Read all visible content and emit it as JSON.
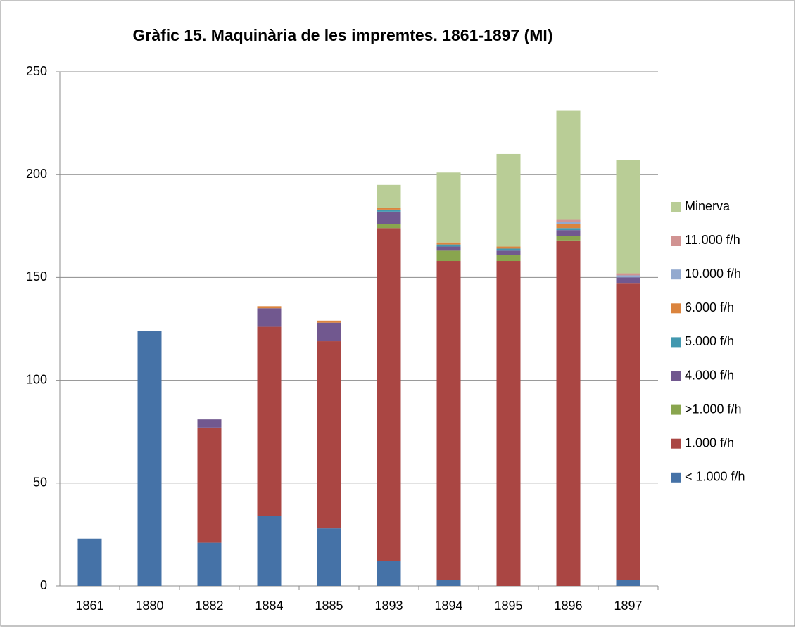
{
  "chart_data": {
    "type": "stacked_bar",
    "title": "Gràfic 15. Maquinària de les impremtes. 1861-1897 (MI)",
    "categories": [
      "1861",
      "1880",
      "1882",
      "1884",
      "1885",
      "1893",
      "1894",
      "1895",
      "1896",
      "1897"
    ],
    "series": [
      {
        "name": "< 1.000 f/h",
        "color": "#4572a7",
        "values": [
          23,
          124,
          21,
          34,
          28,
          12,
          3,
          0,
          0,
          3
        ]
      },
      {
        "name": "1.000 f/h",
        "color": "#aa4643",
        "values": [
          0,
          0,
          56,
          92,
          91,
          162,
          155,
          158,
          168,
          144
        ]
      },
      {
        "name": ">1.000 f/h",
        "color": "#89a54e",
        "values": [
          0,
          0,
          0,
          0,
          0,
          2,
          5,
          3,
          2,
          0
        ]
      },
      {
        "name": "4.000 f/h",
        "color": "#71588f",
        "values": [
          0,
          0,
          4,
          9,
          9,
          6,
          2,
          2,
          3,
          3
        ]
      },
      {
        "name": "5.000 f/h",
        "color": "#4198af",
        "values": [
          0,
          0,
          0,
          0,
          0,
          1,
          1,
          1,
          1,
          0
        ]
      },
      {
        "name": "6.000 f/h",
        "color": "#db843d",
        "values": [
          0,
          0,
          0,
          1,
          1,
          1,
          1,
          1,
          2,
          0
        ]
      },
      {
        "name": "10.000 f/h",
        "color": "#93a9cf",
        "values": [
          0,
          0,
          0,
          0,
          0,
          0,
          0,
          0,
          1,
          1
        ]
      },
      {
        "name": "11.000 f/h",
        "color": "#d19392",
        "values": [
          0,
          0,
          0,
          0,
          0,
          0,
          0,
          0,
          1,
          1
        ]
      },
      {
        "name": "Minerva",
        "color": "#b9cd96",
        "values": [
          0,
          0,
          0,
          0,
          0,
          11,
          34,
          45,
          53,
          55
        ]
      }
    ],
    "ylim": [
      0,
      250
    ],
    "yticks": [
      0,
      50,
      100,
      150,
      200,
      250
    ],
    "grid": true,
    "legend": "right"
  }
}
